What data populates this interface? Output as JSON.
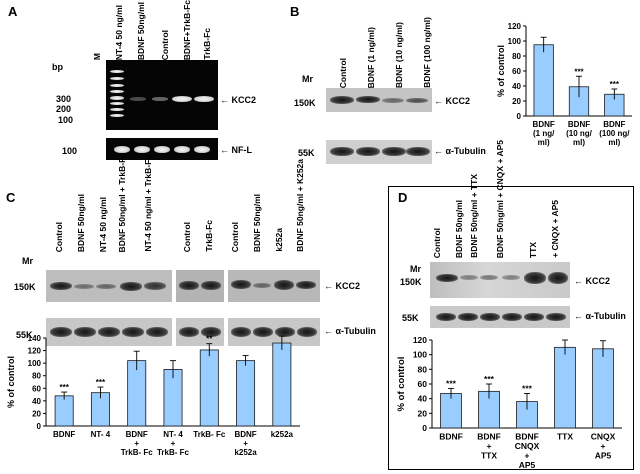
{
  "panels": {
    "A": {
      "label": "A",
      "bp_label": "bp",
      "lanes": [
        "M",
        "NT-4 50 ng/ml",
        "BDNF 50ng/ml",
        "Control",
        "BDNF+TrkB-Fc",
        "TrkB-Fc"
      ],
      "markers": [
        "300",
        "200",
        "100"
      ],
      "marker2": "100",
      "gene1": "KCC2",
      "gene2": "NF-L"
    },
    "B": {
      "label": "B",
      "lanes": [
        "Control",
        "BDNF (1 ng/ml)",
        "BDNF (10 ng/ml)",
        "BDNF (100 ng/ml)"
      ],
      "mr": "Mr",
      "mw1": "150K",
      "mw2": "55K",
      "gene1": "KCC2",
      "gene2": "α-Tubulin"
    },
    "C": {
      "label": "C",
      "lanes": [
        "Control",
        "BDNF 50ng/ml",
        "NT-4 50 ng/ml",
        "BDNF 50ng/ml + TrkB-Fc",
        "NT-4 50 ng/ml + TrkB-Fc",
        "Control",
        "TrkB-Fc",
        "Control",
        "BDNF 50ng/ml",
        "k252a",
        "BDNF 50ng/ml + K252a"
      ],
      "mr": "Mr",
      "mw1": "150K",
      "mw2": "55K",
      "gene1": "KCC2",
      "gene2": "α-Tubulin"
    },
    "D": {
      "label": "D",
      "lanes": [
        "Control",
        "BDNF 50ng/ml",
        "BDNF 50ng/ml + TTX",
        "BDNF 50ng/ml + CNQX + AP5",
        "TTX",
        "+ CNQX + AP5"
      ],
      "mr": "Mr",
      "mw1": "150K",
      "mw2": "55K",
      "gene1": "KCC2",
      "gene2": "α-Tubulin"
    }
  },
  "chart_data": [
    {
      "type": "bar",
      "panel": "B",
      "categories": [
        "BDNF (1 ng/ ml)",
        "BDNF (10 ng/ ml)",
        "BDNF (100 ng/ ml)"
      ],
      "values": [
        95,
        39,
        29
      ],
      "errors": [
        10,
        14,
        7
      ],
      "significance": [
        "",
        "***",
        "***"
      ],
      "ylabel": "% of control",
      "ylim": [
        0,
        120
      ],
      "yticks": [
        0,
        20,
        40,
        60,
        80,
        100,
        120
      ],
      "bar_color": "#99ccff"
    },
    {
      "type": "bar",
      "panel": "C",
      "categories": [
        "BDNF",
        "NT- 4",
        "BDNF + TrkB- Fc",
        "NT- 4 + TrkB- Fc",
        "TrkB- Fc",
        "BDNF + k252a",
        "k252a"
      ],
      "values": [
        48,
        53,
        104,
        90,
        121,
        104,
        132
      ],
      "errors": [
        6,
        9,
        15,
        14,
        10,
        8,
        11
      ],
      "significance": [
        "***",
        "***",
        "",
        "",
        "**",
        "",
        "**"
      ],
      "ylabel": "% of control",
      "ylim": [
        0,
        140
      ],
      "yticks": [
        0,
        20,
        40,
        60,
        80,
        100,
        120,
        140
      ],
      "bar_color": "#99ccff"
    },
    {
      "type": "bar",
      "panel": "D",
      "categories": [
        "BDNF",
        "BDNF + TTX",
        "BDNF CNQX + AP5",
        "TTX",
        "CNQX + AP5"
      ],
      "values": [
        47,
        50,
        36,
        110,
        108
      ],
      "errors": [
        7,
        10,
        11,
        10,
        11
      ],
      "significance": [
        "***",
        "***",
        "***",
        "",
        ""
      ],
      "ylabel": "% of control",
      "ylim": [
        0,
        120
      ],
      "yticks": [
        0,
        20,
        40,
        60,
        80,
        100,
        120
      ],
      "bar_color": "#99ccff"
    }
  ]
}
